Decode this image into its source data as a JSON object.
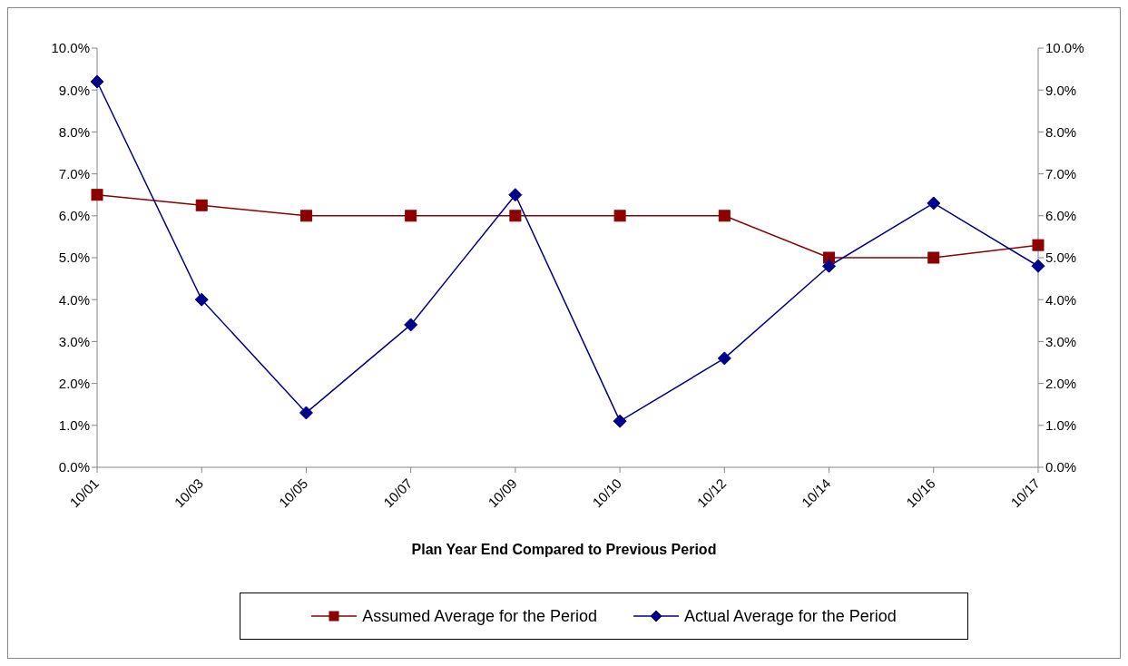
{
  "chart_data": {
    "type": "line",
    "xlabel": "Plan Year End Compared to Previous Period",
    "categories": [
      "10/01",
      "10/03",
      "10/05",
      "10/07",
      "10/09",
      "10/10",
      "10/12",
      "10/14",
      "10/16",
      "10/17"
    ],
    "series": [
      {
        "name": "Assumed Average for the Period",
        "color": "#8b0000",
        "marker": "square",
        "values": [
          6.5,
          6.25,
          6.0,
          6.0,
          6.0,
          6.0,
          6.0,
          5.0,
          5.0,
          5.3
        ]
      },
      {
        "name": "Actual Average for the Period",
        "color": "#00008b",
        "marker": "diamond",
        "values": [
          9.2,
          4.0,
          1.3,
          3.4,
          6.5,
          1.1,
          2.6,
          4.8,
          6.3,
          4.8
        ]
      }
    ],
    "ylim": [
      0,
      10
    ],
    "yticks": [
      {
        "value": 0,
        "label": "0.0%"
      },
      {
        "value": 1,
        "label": "1.0%"
      },
      {
        "value": 2,
        "label": "2.0%"
      },
      {
        "value": 3,
        "label": "3.0%"
      },
      {
        "value": 4,
        "label": "4.0%"
      },
      {
        "value": 5,
        "label": "5.0%"
      },
      {
        "value": 6,
        "label": "6.0%"
      },
      {
        "value": 7,
        "label": "7.0%"
      },
      {
        "value": 8,
        "label": "8.0%"
      },
      {
        "value": 9,
        "label": "9.0%"
      },
      {
        "value": 10,
        "label": "10.0%"
      }
    ],
    "y2lim": [
      0,
      10
    ],
    "y2ticks": [
      {
        "value": 0,
        "label": "0.0%"
      },
      {
        "value": 1,
        "label": "1.0%"
      },
      {
        "value": 2,
        "label": "2.0%"
      },
      {
        "value": 3,
        "label": "3.0%"
      },
      {
        "value": 4,
        "label": "4.0%"
      },
      {
        "value": 5,
        "label": "5.0%"
      },
      {
        "value": 6,
        "label": "6.0%"
      },
      {
        "value": 7,
        "label": "7.0%"
      },
      {
        "value": 8,
        "label": "8.0%"
      },
      {
        "value": 9,
        "label": "9.0%"
      },
      {
        "value": 10,
        "label": "10.0%"
      }
    ],
    "grid": false,
    "legend": "bottom"
  }
}
